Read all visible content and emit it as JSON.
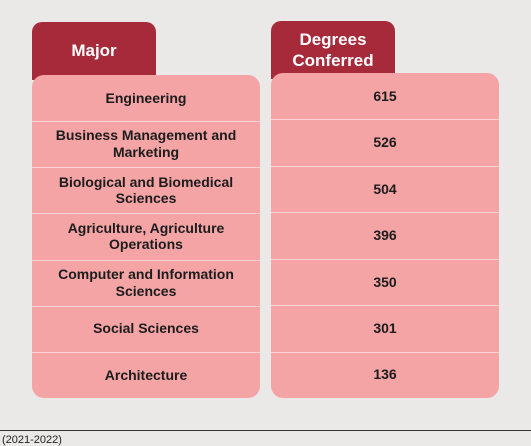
{
  "colors": {
    "background": "#ebe8e8",
    "header": "#a62a3a",
    "cell": "#f4a4a5",
    "divider": "#fbd3d4"
  },
  "chart_data": {
    "type": "table",
    "columns": [
      "Major",
      "Degrees\nConferred"
    ],
    "rows": [
      {
        "major": "Engineering",
        "degrees": 615
      },
      {
        "major": "Business Management and Marketing",
        "degrees": 526
      },
      {
        "major": "Biological and Biomedical Sciences",
        "degrees": 504
      },
      {
        "major": "Agriculture, Agriculture Operations",
        "degrees": 396
      },
      {
        "major": "Computer and Information Sciences",
        "degrees": 350
      },
      {
        "major": "Social Sciences",
        "degrees": 301
      },
      {
        "major": "Architecture",
        "degrees": 136
      }
    ]
  },
  "footnote": "(2021-2022)"
}
